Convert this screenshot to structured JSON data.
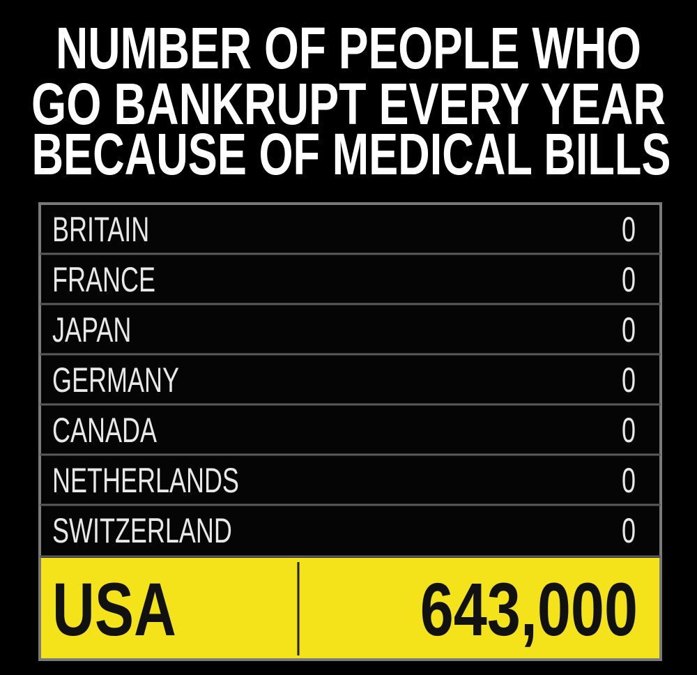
{
  "title": {
    "lines": [
      "NUMBER OF PEOPLE WHO",
      "GO BANKRUPT EVERY YEAR",
      "BECAUSE OF MEDICAL BILLS"
    ]
  },
  "table": {
    "rows": [
      [
        "BRITAIN",
        "0"
      ],
      [
        "FRANCE",
        "0"
      ],
      [
        "JAPAN",
        "0"
      ],
      [
        "GERMANY",
        "0"
      ],
      [
        "CANADA",
        "0"
      ],
      [
        "NETHERLANDS",
        "0"
      ],
      [
        "SWITZERLAND",
        "0"
      ],
      [
        "USA",
        "643,000"
      ]
    ]
  }
}
